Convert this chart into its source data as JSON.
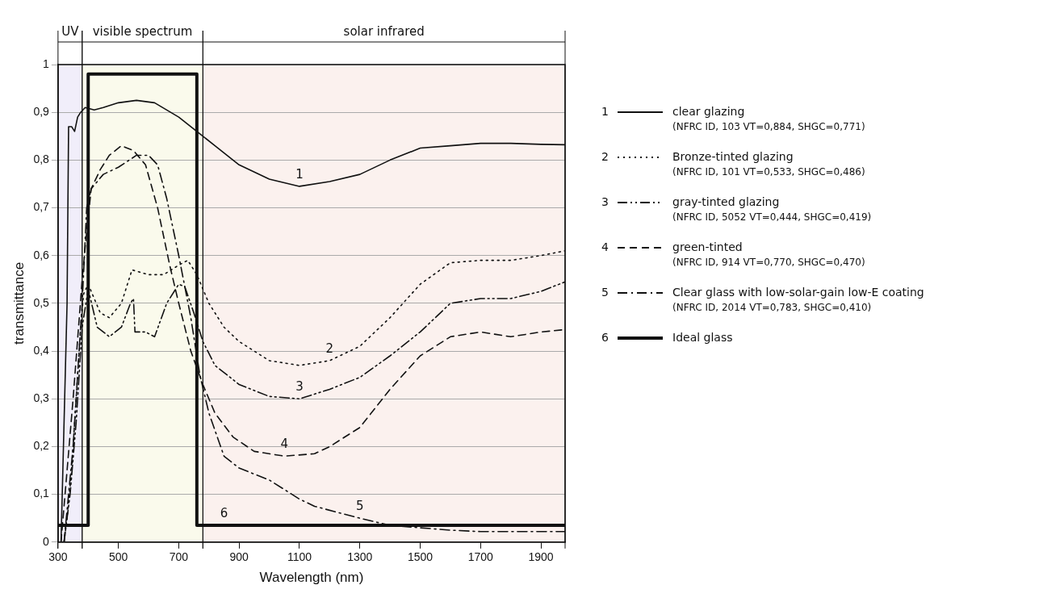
{
  "chart_data": {
    "type": "line",
    "xlabel": "Wavelength (nm)",
    "ylabel": "transmittance",
    "xlim": [
      300,
      1980
    ],
    "ylim": [
      0,
      1
    ],
    "xticks": [
      300,
      500,
      700,
      900,
      1100,
      1300,
      1500,
      1700,
      1900
    ],
    "yticks": [
      {
        "value": 0,
        "label": "0"
      },
      {
        "value": 0.1,
        "label": "0,1"
      },
      {
        "value": 0.2,
        "label": "0,2"
      },
      {
        "value": 0.3,
        "label": "0,3"
      },
      {
        "value": 0.4,
        "label": "0,4"
      },
      {
        "value": 0.5,
        "label": "0,5"
      },
      {
        "value": 0.6,
        "label": "0,6"
      },
      {
        "value": 0.7,
        "label": "0,7"
      },
      {
        "value": 0.8,
        "label": "0,8"
      },
      {
        "value": 0.9,
        "label": "0,9"
      },
      {
        "value": 1,
        "label": "1"
      }
    ],
    "grid": "y",
    "legend": "right",
    "marker": "none",
    "series": [
      {
        "name": "clear glazing (NFRC ID, 103 VT=0,884, SHGC=0,771)",
        "color": "#111111",
        "line_style": "solid",
        "x": [
          310,
          330,
          335,
          345,
          355,
          365,
          375,
          390,
          420,
          450,
          500,
          560,
          620,
          700,
          760,
          820,
          900,
          1000,
          1100,
          1200,
          1300,
          1400,
          1500,
          1600,
          1700,
          1800,
          1900,
          1980
        ],
        "values": [
          0,
          0.5,
          0.87,
          0.87,
          0.86,
          0.89,
          0.9,
          0.91,
          0.905,
          0.91,
          0.92,
          0.925,
          0.92,
          0.89,
          0.86,
          0.83,
          0.79,
          0.76,
          0.745,
          0.755,
          0.77,
          0.8,
          0.825,
          0.83,
          0.835,
          0.835,
          0.833,
          0.832
        ]
      },
      {
        "name": "Bronze-tinted glazing (NFRC ID, 101 VT=0,533, SHGC=0,486)",
        "color": "#111111",
        "line_style": "dotted",
        "x": [
          320,
          330,
          345,
          360,
          375,
          385,
          400,
          440,
          470,
          510,
          545,
          600,
          650,
          700,
          730,
          760,
          800,
          850,
          900,
          1000,
          1100,
          1200,
          1300,
          1400,
          1500,
          1600,
          1700,
          1800,
          1900,
          1980
        ],
        "values": [
          0,
          0.05,
          0.15,
          0.3,
          0.45,
          0.52,
          0.54,
          0.48,
          0.47,
          0.5,
          0.57,
          0.56,
          0.56,
          0.58,
          0.59,
          0.56,
          0.5,
          0.45,
          0.42,
          0.38,
          0.37,
          0.38,
          0.41,
          0.47,
          0.54,
          0.585,
          0.59,
          0.59,
          0.6,
          0.61
        ]
      },
      {
        "name": "gray-tinted glazing (NFRC ID, 5052 VT=0,444, SHGC=0,419)",
        "color": "#111111",
        "line_style": "dashdotdot",
        "x": [
          320,
          340,
          360,
          380,
          400,
          430,
          470,
          510,
          540,
          550,
          555,
          590,
          620,
          660,
          700,
          720,
          750,
          780,
          820,
          900,
          1000,
          1100,
          1200,
          1300,
          1400,
          1500,
          1600,
          1700,
          1800,
          1900,
          1980
        ],
        "values": [
          0,
          0.1,
          0.25,
          0.45,
          0.53,
          0.45,
          0.43,
          0.45,
          0.5,
          0.51,
          0.44,
          0.44,
          0.43,
          0.5,
          0.54,
          0.535,
          0.48,
          0.42,
          0.37,
          0.33,
          0.305,
          0.3,
          0.32,
          0.345,
          0.39,
          0.44,
          0.5,
          0.51,
          0.51,
          0.525,
          0.545
        ]
      },
      {
        "name": "green-tinted (NFRC ID, 914 VT=0,770, SHGC=0,470)",
        "color": "#111111",
        "line_style": "dashed",
        "x": [
          310,
          350,
          380,
          395,
          410,
          440,
          470,
          510,
          550,
          590,
          630,
          670,
          700,
          740,
          780,
          820,
          880,
          950,
          1050,
          1150,
          1200,
          1300,
          1400,
          1500,
          1600,
          1700,
          1800,
          1900,
          1980
        ],
        "values": [
          0,
          0.3,
          0.55,
          0.65,
          0.74,
          0.78,
          0.81,
          0.83,
          0.82,
          0.79,
          0.7,
          0.58,
          0.5,
          0.4,
          0.33,
          0.27,
          0.22,
          0.19,
          0.18,
          0.185,
          0.2,
          0.24,
          0.32,
          0.39,
          0.43,
          0.44,
          0.43,
          0.44,
          0.445
        ]
      },
      {
        "name": "Clear glass with low-solar-gain low-E coating (NFRC ID, 2014 VT=0,783, SHGC=0,410)",
        "color": "#111111",
        "line_style": "dashdot",
        "x": [
          320,
          350,
          380,
          395,
          410,
          450,
          500,
          560,
          600,
          630,
          660,
          700,
          740,
          770,
          800,
          850,
          900,
          1000,
          1100,
          1150,
          1300,
          1400,
          1500,
          1600,
          1700,
          1800,
          1900,
          1980
        ],
        "values": [
          0,
          0.2,
          0.5,
          0.7,
          0.74,
          0.77,
          0.785,
          0.81,
          0.81,
          0.79,
          0.72,
          0.6,
          0.47,
          0.35,
          0.27,
          0.18,
          0.155,
          0.13,
          0.09,
          0.075,
          0.05,
          0.035,
          0.03,
          0.025,
          0.022,
          0.022,
          0.022,
          0.022
        ]
      },
      {
        "name": "Ideal glass",
        "color": "#111111",
        "line_style": "solid",
        "x": [
          300,
          400,
          400,
          760,
          760,
          1980
        ],
        "values": [
          0.035,
          0.035,
          0.98,
          0.98,
          0.035,
          0.035
        ]
      }
    ],
    "bands": [
      {
        "axis": "x",
        "from": 300,
        "to": 380,
        "label": "UV",
        "color": "#f1eefa"
      },
      {
        "axis": "x",
        "from": 380,
        "to": 780,
        "label": "visible spectrum",
        "color": "#fafaec"
      },
      {
        "axis": "x",
        "from": 780,
        "to": 1980,
        "label": "solar infrared",
        "color": "#fbf1ee"
      }
    ],
    "annotations": [
      {
        "text": "1",
        "x": 1100,
        "y": 0.745
      },
      {
        "text": "2",
        "x": 1200,
        "y": 0.38
      },
      {
        "text": "3",
        "x": 1100,
        "y": 0.3
      },
      {
        "text": "4",
        "x": 1050,
        "y": 0.18
      },
      {
        "text": "5",
        "x": 1300,
        "y": 0.05
      },
      {
        "text": "6",
        "x": 850,
        "y": 0.035
      }
    ]
  }
}
